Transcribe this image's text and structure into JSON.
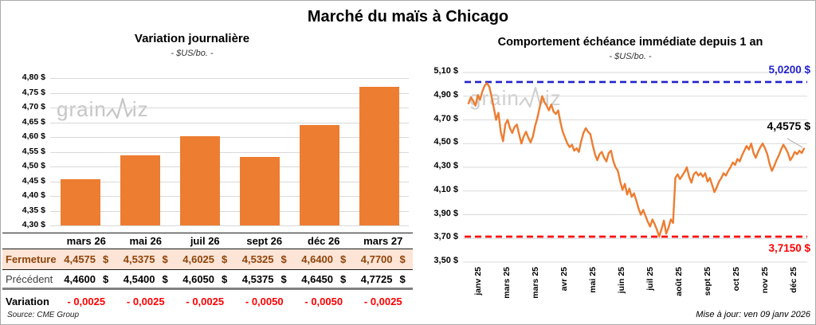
{
  "page_title": "Marché du maïs à Chicago",
  "watermark": {
    "part1": "grain",
    "part2": "iz"
  },
  "footer": {
    "source": "Source: CME Group",
    "updated": "Mise à jour: ven 09 janv 2026"
  },
  "colors": {
    "series_orange": "#ED7D31",
    "high_line_blue": "#2222CC",
    "low_line_red": "#FF0000",
    "gridline": "#D9D9D9",
    "fermeture_bg": "#FCE4D6",
    "fermeture_text": "#8E4409",
    "variation_text": "#FF0000"
  },
  "table": {
    "columns": [
      "mars 26",
      "mai 26",
      "juil 26",
      "sept 26",
      "déc 26",
      "mars 27"
    ],
    "rows": [
      {
        "label": "Fermeture",
        "style": "fermeture",
        "suffix": "$",
        "values": [
          "4,4575",
          "4,5375",
          "4,6025",
          "4,5325",
          "4,6400",
          "4,7700"
        ]
      },
      {
        "label": "Précédent",
        "style": "precedent",
        "suffix": "$",
        "values": [
          "4,4600",
          "4,5400",
          "4,6050",
          "4,5375",
          "4,6450",
          "4,7725"
        ]
      },
      {
        "label": "Variation",
        "style": "variation",
        "suffix": "",
        "values": [
          "- 0,0025",
          "- 0,0025",
          "- 0,0025",
          "- 0,0050",
          "- 0,0050",
          "- 0,0025"
        ]
      }
    ]
  },
  "chart_data": [
    {
      "type": "bar",
      "title": "Variation journalière",
      "subtitle": "- $US/bo. -",
      "categories": [
        "mars 26",
        "mai 26",
        "juil 26",
        "sept 26",
        "déc 26",
        "mars 27"
      ],
      "values": [
        4.4575,
        4.5375,
        4.6025,
        4.5325,
        4.64,
        4.77
      ],
      "ylim": [
        4.3,
        4.8
      ],
      "ytick_step": 0.05,
      "ytick_labels": [
        "4,80 $",
        "4,75 $",
        "4,70 $",
        "4,65 $",
        "4,60 $",
        "4,55 $",
        "4,50 $",
        "4,45 $",
        "4,40 $",
        "4,35 $",
        "4,30 $"
      ],
      "bar_color": "#ED7D31",
      "grid": true
    },
    {
      "type": "line",
      "title": "Comportement échéance immédiate depuis 1 an",
      "subtitle": "- $US/bo. -",
      "ylim": [
        3.5,
        5.1
      ],
      "ytick_step": 0.2,
      "ytick_labels": [
        "5,10 $",
        "4,90 $",
        "4,70 $",
        "4,50 $",
        "4,30 $",
        "4,10 $",
        "3,90 $",
        "3,70 $",
        "3,50 $"
      ],
      "x_labels": [
        "janv 25",
        "mars 25",
        "mars 25",
        "avr 25",
        "mai 25",
        "juin 25",
        "juil 25",
        "août 25",
        "sept 25",
        "oct 25",
        "nov 25",
        "déc 25"
      ],
      "line_color": "#ED7D31",
      "grid": true,
      "high_line": {
        "value": 5.02,
        "label": "5,0200 $",
        "color": "#2222CC",
        "dashed": true
      },
      "low_line": {
        "value": 3.715,
        "label": "3,7150 $",
        "color": "#FF0000",
        "dashed": true
      },
      "last_point": {
        "value": 4.4575,
        "label": "4,4575 $"
      },
      "values": [
        4.84,
        4.89,
        4.86,
        4.82,
        4.91,
        4.87,
        4.94,
        4.99,
        5.01,
        4.98,
        4.9,
        4.8,
        4.7,
        4.76,
        4.6,
        4.52,
        4.66,
        4.7,
        4.63,
        4.59,
        4.64,
        4.66,
        4.58,
        4.5,
        4.56,
        4.6,
        4.55,
        4.51,
        4.56,
        4.65,
        4.72,
        4.81,
        4.9,
        4.85,
        4.82,
        4.78,
        4.83,
        4.77,
        4.75,
        4.78,
        4.68,
        4.6,
        4.55,
        4.5,
        4.47,
        4.49,
        4.44,
        4.46,
        4.43,
        4.52,
        4.59,
        4.63,
        4.6,
        4.58,
        4.49,
        4.41,
        4.36,
        4.41,
        4.43,
        4.38,
        4.35,
        4.42,
        4.44,
        4.35,
        4.3,
        4.27,
        4.18,
        4.11,
        4.16,
        4.07,
        4.12,
        4.05,
        4.08,
        4.02,
        3.95,
        3.9,
        3.94,
        3.89,
        3.84,
        3.8,
        3.86,
        3.82,
        3.77,
        3.715,
        3.78,
        3.85,
        3.74,
        3.79,
        3.86,
        3.83,
        4.21,
        4.24,
        4.2,
        4.23,
        4.26,
        4.3,
        4.22,
        4.17,
        4.24,
        4.26,
        4.23,
        4.25,
        4.22,
        4.25,
        4.18,
        4.21,
        4.15,
        4.09,
        4.13,
        4.18,
        4.21,
        4.25,
        4.23,
        4.27,
        4.3,
        4.34,
        4.32,
        4.37,
        4.35,
        4.4,
        4.44,
        4.48,
        4.45,
        4.5,
        4.42,
        4.38,
        4.43,
        4.47,
        4.5,
        4.46,
        4.41,
        4.33,
        4.27,
        4.31,
        4.36,
        4.4,
        4.45,
        4.49,
        4.46,
        4.42,
        4.36,
        4.39,
        4.43,
        4.41,
        4.44,
        4.42,
        4.4575
      ]
    }
  ]
}
